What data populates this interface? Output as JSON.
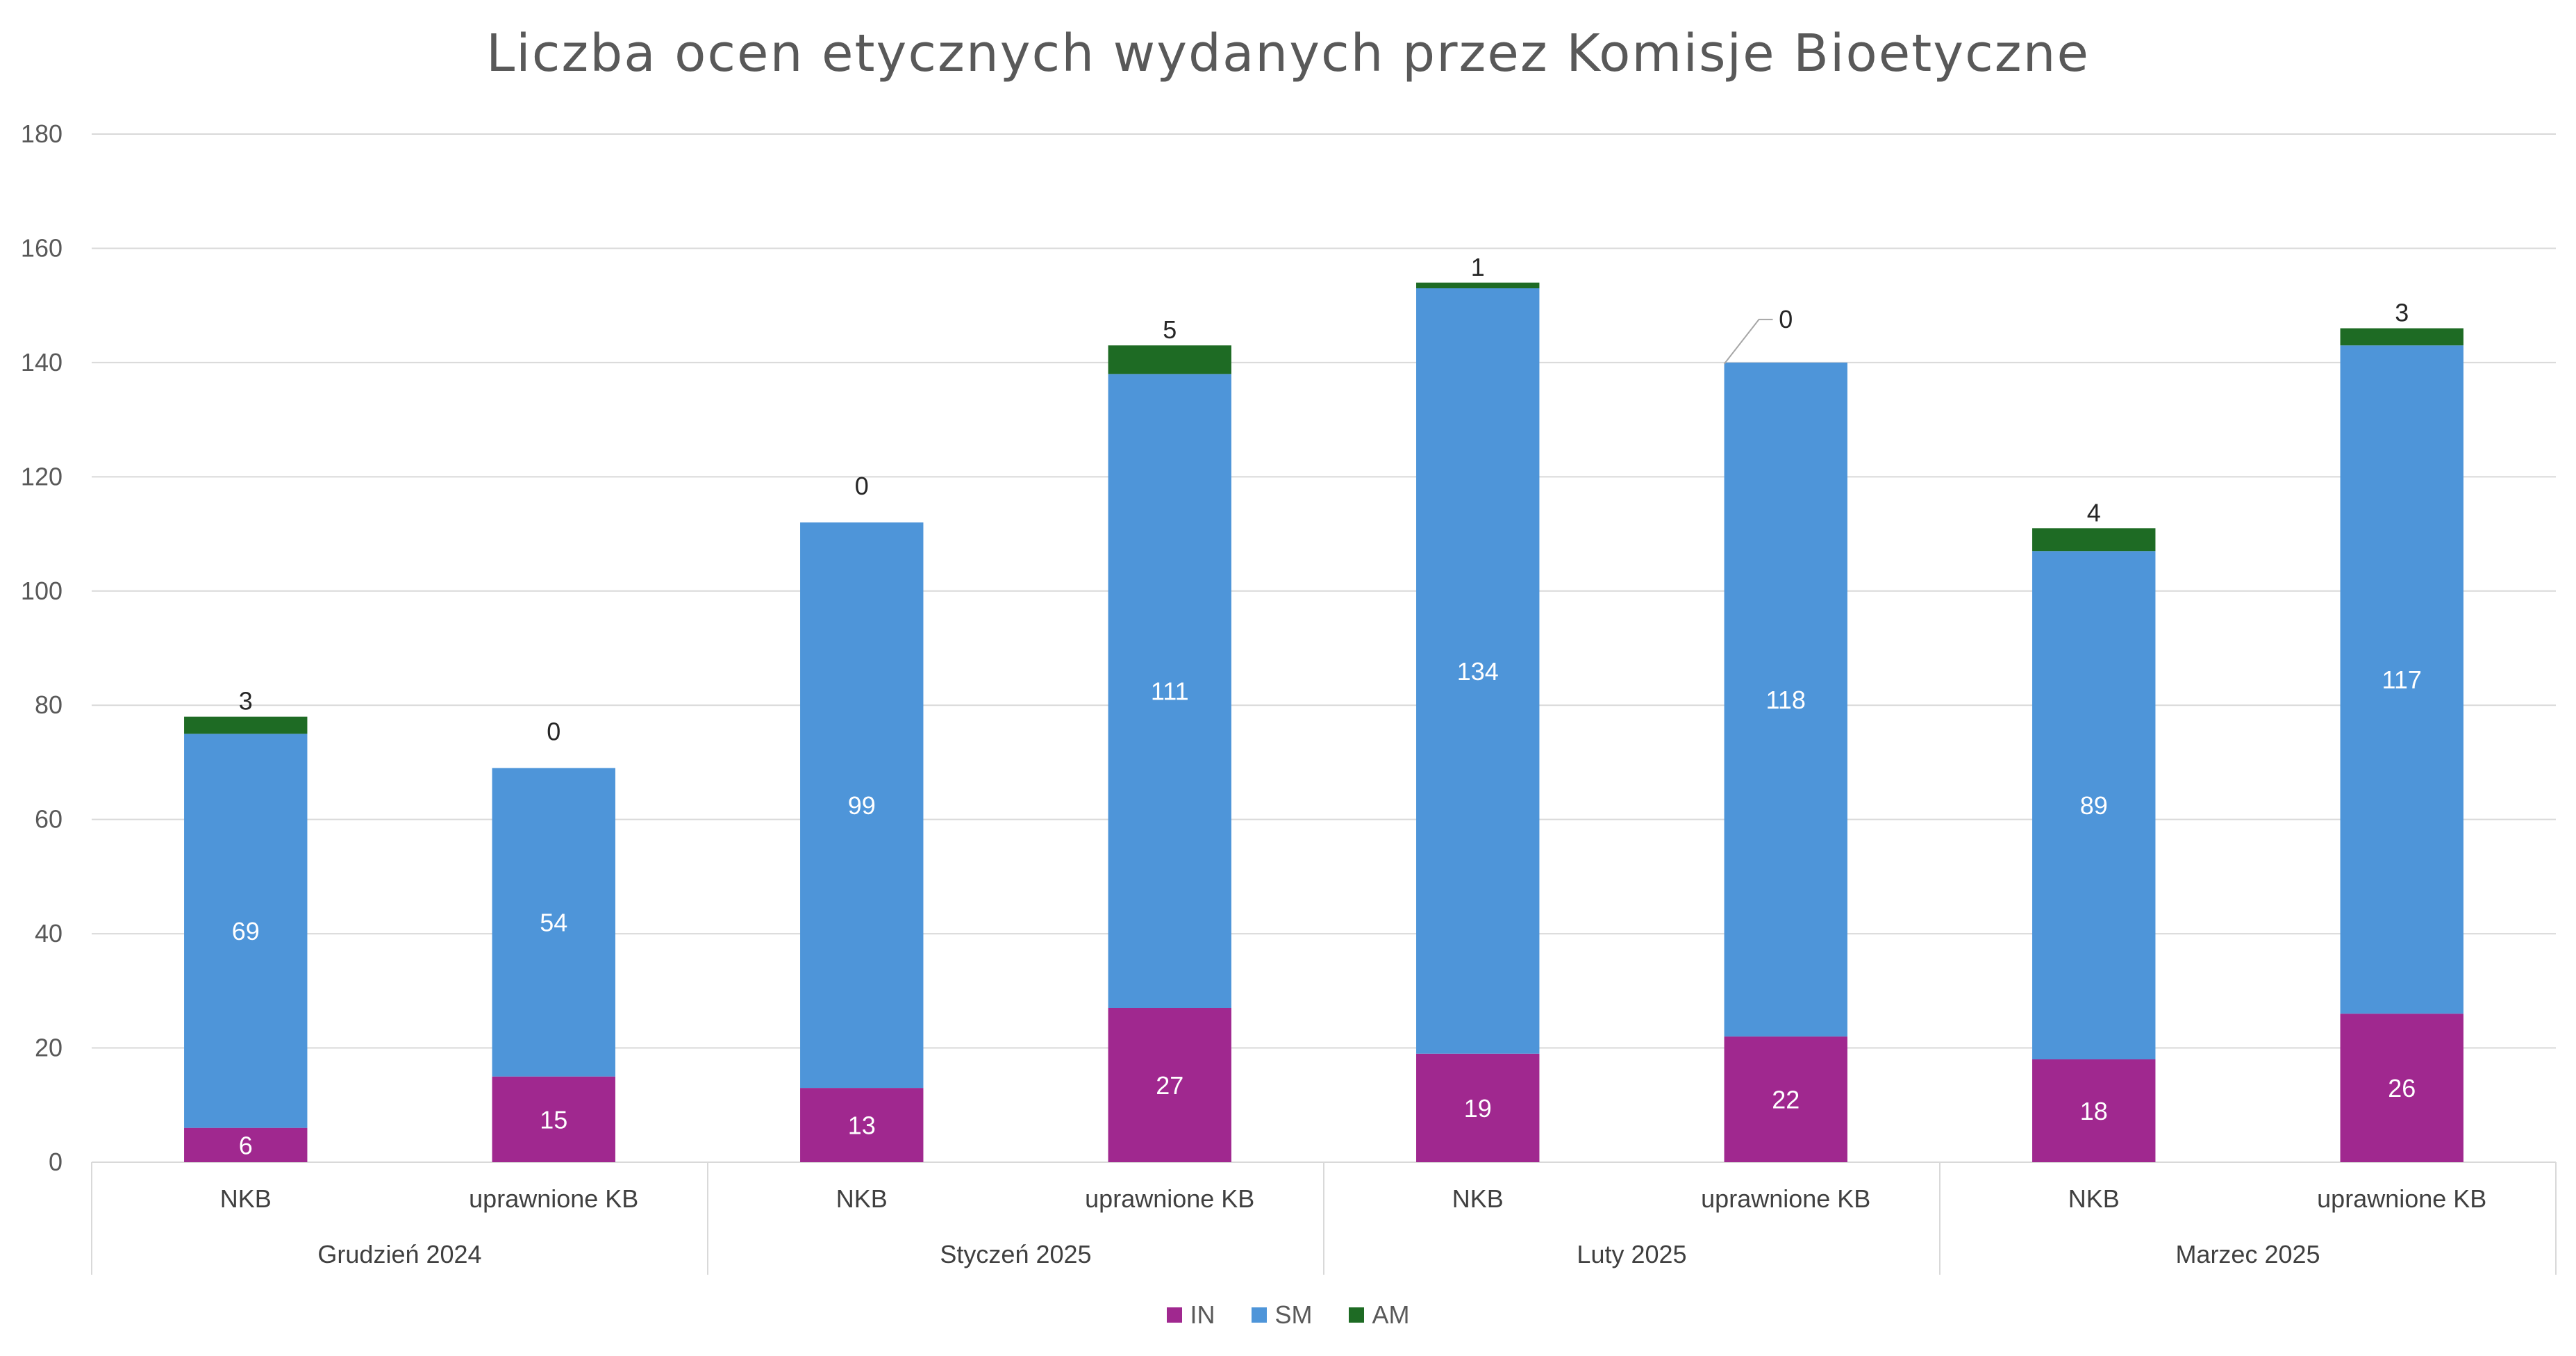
{
  "chart_data": {
    "type": "bar",
    "stacked": true,
    "title": "Liczba ocen etycznych wydanych przez Komisje Bioetyczne",
    "groups": [
      {
        "label": "Grudzień 2024",
        "categories": [
          "NKB",
          "uprawnione KB"
        ]
      },
      {
        "label": "Styczeń 2025",
        "categories": [
          "NKB",
          "uprawnione KB"
        ]
      },
      {
        "label": "Luty 2025",
        "categories": [
          "NKB",
          "uprawnione KB"
        ]
      },
      {
        "label": "Marzec 2025",
        "categories": [
          "NKB",
          "uprawnione KB"
        ]
      }
    ],
    "series": [
      {
        "name": "IN",
        "color": "#a0288f",
        "values": [
          6,
          15,
          13,
          27,
          19,
          22,
          18,
          26
        ]
      },
      {
        "name": "SM",
        "color": "#4e95d9",
        "values": [
          69,
          54,
          99,
          111,
          134,
          118,
          89,
          117
        ]
      },
      {
        "name": "AM",
        "color": "#1e6b24",
        "values": [
          3,
          0,
          0,
          5,
          1,
          0,
          4,
          3
        ]
      }
    ],
    "ylim": [
      0,
      180
    ],
    "yticks": [
      0,
      20,
      40,
      60,
      80,
      100,
      120,
      140,
      160,
      180
    ],
    "grid": true,
    "legend": "bottom"
  }
}
